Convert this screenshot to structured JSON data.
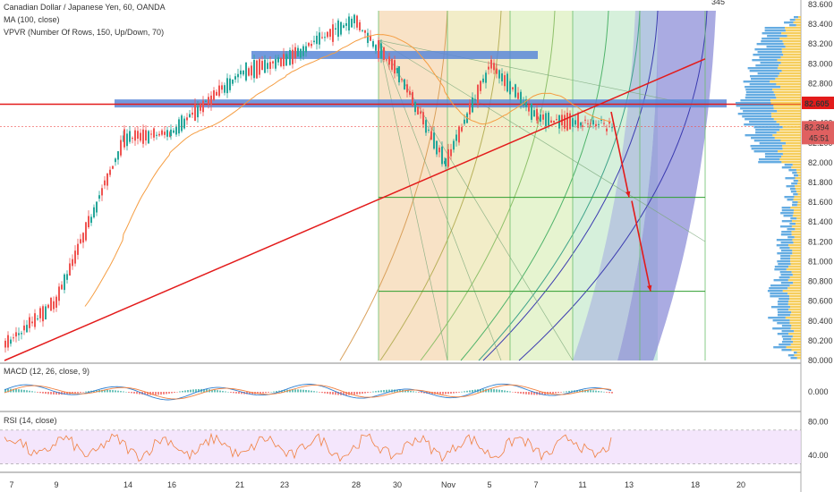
{
  "legend": {
    "symbol": "Canadian Dollar / Japanese Yen, 60, OANDA",
    "ma": "MA (100, close)",
    "vpvr": "VPVR (Number Of Rows, 150, Up/Down, 70)"
  },
  "macd_label": "MACD (12, 26, close, 9)",
  "rsi_label": "RSI (14, close)",
  "top_marker": "345",
  "colors": {
    "up": "#26a69a",
    "down": "#ef5350",
    "ma": "#f59d42",
    "trend": "#e31b1b",
    "zone": "#5b87d8",
    "rsi_band": "#efdcfb",
    "rsi_line": "#f08040",
    "vol_up": "#4a9edd",
    "vol_down": "#f5c542"
  },
  "price_axis": {
    "ticks": [
      "83.600",
      "83.400",
      "83.200",
      "83.000",
      "82.800",
      "82.600",
      "82.400",
      "82.200",
      "82.000",
      "81.800",
      "81.600",
      "81.400",
      "81.200",
      "81.000",
      "80.800",
      "80.600",
      "80.400",
      "80.200",
      "80.000"
    ],
    "last_price": "82.605",
    "current_price": "82.394",
    "countdown": "45:51"
  },
  "macd_axis": {
    "ticks": [
      "0.000"
    ]
  },
  "rsi_axis": {
    "ticks": [
      "80.00",
      "40.00"
    ]
  },
  "time_axis": {
    "ticks": [
      "7",
      "9",
      "14",
      "16",
      "21",
      "23",
      "28",
      "30",
      "Nov",
      "5",
      "7",
      "11",
      "13",
      "18",
      "20"
    ]
  },
  "chart_data": {
    "type": "candlestick",
    "title": "Canadian Dollar / Japanese Yen, 60, OANDA",
    "timeframe": "60",
    "x": [
      "7",
      "9",
      "14",
      "16",
      "21",
      "23",
      "28",
      "30",
      "Nov",
      "5",
      "7",
      "11",
      "13",
      "18",
      "20"
    ],
    "ylim": [
      79.95,
      83.65
    ],
    "key_levels": {
      "resistance_zone": 82.6,
      "upper_zone": 83.1,
      "target_1": 81.65,
      "target_2": 80.7
    },
    "price_path": [
      {
        "x": "7",
        "y": 80.15
      },
      {
        "x": "9",
        "y": 80.6
      },
      {
        "x": "14",
        "y": 82.25
      },
      {
        "x": "16",
        "y": 82.3
      },
      {
        "x": "21",
        "y": 82.9
      },
      {
        "x": "23",
        "y": 83.05
      },
      {
        "x": "28",
        "y": 83.45
      },
      {
        "x": "30",
        "y": 82.9
      },
      {
        "x": "Nov",
        "y": 82.0
      },
      {
        "x": "5",
        "y": 83.0
      },
      {
        "x": "7",
        "y": 82.45
      },
      {
        "x": "11",
        "y": 82.4
      }
    ],
    "projection": [
      {
        "x": "13",
        "y": 81.65
      },
      {
        "x": "13",
        "y": 80.7
      }
    ],
    "macd": {
      "label": "MACD (12, 26, close, 9)"
    },
    "rsi": {
      "label": "RSI (14, close)",
      "band": [
        70,
        30
      ]
    }
  }
}
